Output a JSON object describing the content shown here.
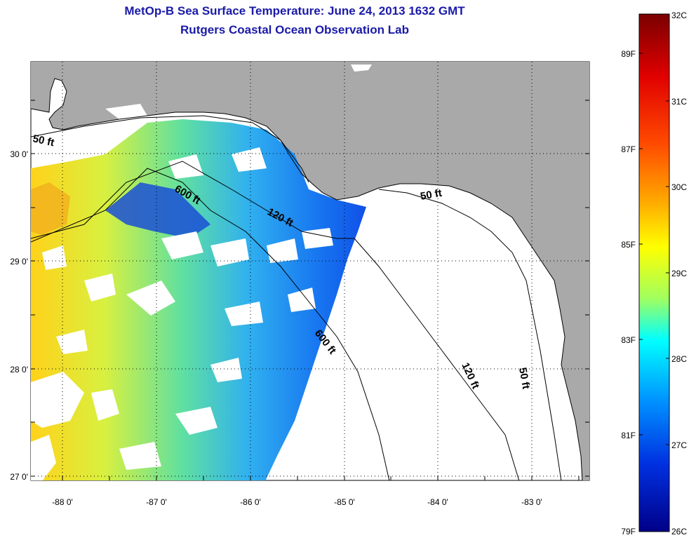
{
  "header": {
    "title": "MetOp-B Sea Surface Temperature:  June 24, 2013 1632 GMT",
    "subtitle": "Rutgers Coastal Ocean Observation Lab"
  },
  "map": {
    "lat_labels": [
      "30 0'",
      "29 0'",
      "28 0'",
      "27 0'"
    ],
    "lon_labels": [
      "-88 0'",
      "-87 0'",
      "-86 0'",
      "-85 0'",
      "-84 0'",
      "-83 0'"
    ],
    "depth_labels": [
      "50 ft",
      "600 ft",
      "120 ft",
      "50 ft",
      "600 ft",
      "120 ft",
      "50 ft"
    ],
    "colors": {
      "land": "#a9a9a9",
      "no_data": "#ffffff",
      "grid": "#000000"
    }
  },
  "colorbar": {
    "celsius_labels": [
      "32C",
      "31C",
      "30C",
      "29C",
      "28C",
      "27C",
      "26C"
    ],
    "fahrenheit_labels": [
      "89F",
      "87F",
      "85F",
      "83F",
      "81F",
      "79F"
    ],
    "colors": [
      "#7a0000",
      "#ff0000",
      "#ffa500",
      "#ffff00",
      "#00ffff",
      "#0050ff",
      "#000088"
    ]
  }
}
